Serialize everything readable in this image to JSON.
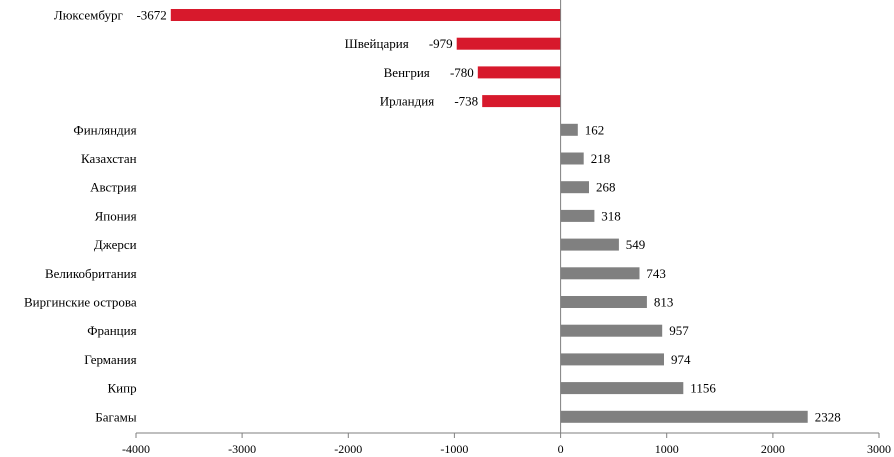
{
  "chart_data": {
    "type": "bar",
    "orientation": "horizontal",
    "categories": [
      "Люксембург",
      "Швейцария",
      "Венгрия",
      "Ирландия",
      "Финляндия",
      "Казахстан",
      "Австрия",
      "Япония",
      "Джерси",
      "Великобритания",
      "Виргинские острова",
      "Франция",
      "Германия",
      "Кипр",
      "Багамы"
    ],
    "values": [
      -3672,
      -979,
      -780,
      -738,
      162,
      218,
      268,
      318,
      549,
      743,
      813,
      957,
      974,
      1156,
      2328
    ],
    "value_labels": [
      "-3672",
      "-979",
      "-780",
      "-738",
      "162",
      "218",
      "268",
      "318",
      "549",
      "743",
      "813",
      "957",
      "974",
      "1156",
      "2328"
    ],
    "xlim": [
      -4000,
      3000
    ],
    "xticks": [
      -4000,
      -3000,
      -2000,
      -1000,
      0,
      1000,
      2000,
      3000
    ],
    "xtick_labels": [
      "-4000",
      "-3000",
      "-2000",
      "-1000",
      "0",
      "1000",
      "2000",
      "3000"
    ],
    "grid": false,
    "legend": "none",
    "colors": {
      "negative": "#d7192c",
      "positive": "#808080",
      "axis": "#7f7f7f"
    }
  }
}
